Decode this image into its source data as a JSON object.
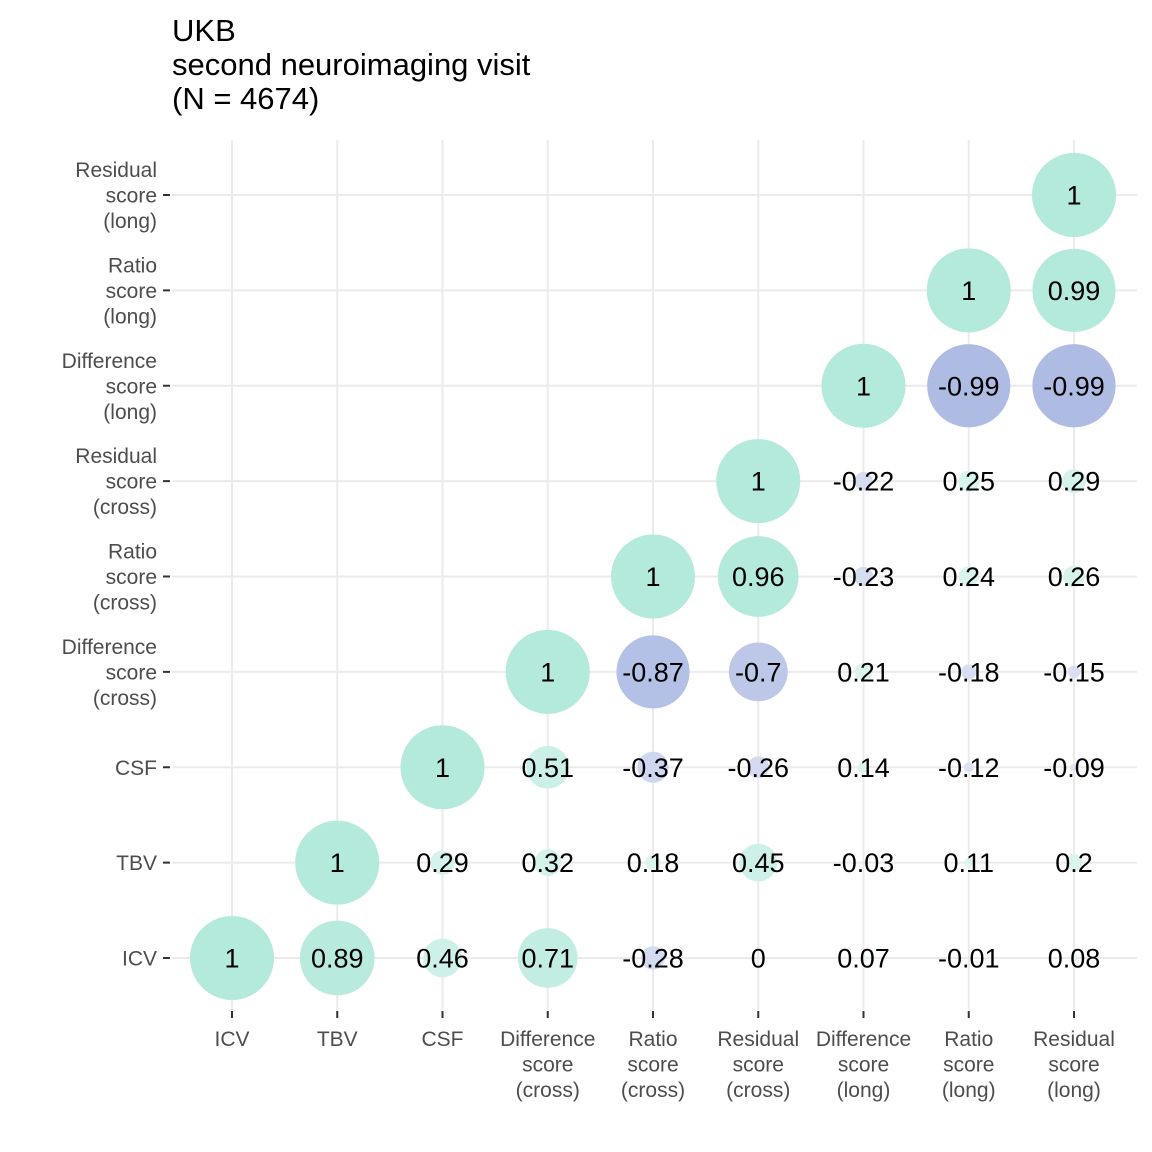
{
  "chart_data": {
    "type": "correlation-matrix",
    "title": [
      "UKB",
      "second neuroimaging visit",
      "(N = 4674)"
    ],
    "variables": [
      [
        "ICV"
      ],
      [
        "TBV"
      ],
      [
        "CSF"
      ],
      [
        "Difference",
        "score",
        "(cross)"
      ],
      [
        "Ratio",
        "score",
        "(cross)"
      ],
      [
        "Residual",
        "score",
        "(cross)"
      ],
      [
        "Difference",
        "score",
        "(long)"
      ],
      [
        "Ratio",
        "score",
        "(long)"
      ],
      [
        "Residual",
        "score",
        "(long)"
      ]
    ],
    "colors": {
      "positive": "#66d4b8",
      "negative": "#5b78c8"
    },
    "grid": true,
    "cells": [
      {
        "x": 0,
        "y": 0,
        "value": 1,
        "label": "1"
      },
      {
        "x": 1,
        "y": 0,
        "value": 0.89,
        "label": "0.89"
      },
      {
        "x": 2,
        "y": 0,
        "value": 0.46,
        "label": "0.46"
      },
      {
        "x": 3,
        "y": 0,
        "value": 0.71,
        "label": "0.71"
      },
      {
        "x": 4,
        "y": 0,
        "value": -0.28,
        "label": "-0.28"
      },
      {
        "x": 5,
        "y": 0,
        "value": 0,
        "label": "0"
      },
      {
        "x": 6,
        "y": 0,
        "value": 0.07,
        "label": "0.07"
      },
      {
        "x": 7,
        "y": 0,
        "value": -0.01,
        "label": "-0.01"
      },
      {
        "x": 8,
        "y": 0,
        "value": 0.08,
        "label": "0.08"
      },
      {
        "x": 1,
        "y": 1,
        "value": 1,
        "label": "1"
      },
      {
        "x": 2,
        "y": 1,
        "value": 0.29,
        "label": "0.29"
      },
      {
        "x": 3,
        "y": 1,
        "value": 0.32,
        "label": "0.32"
      },
      {
        "x": 4,
        "y": 1,
        "value": 0.18,
        "label": "0.18"
      },
      {
        "x": 5,
        "y": 1,
        "value": 0.45,
        "label": "0.45"
      },
      {
        "x": 6,
        "y": 1,
        "value": -0.03,
        "label": "-0.03"
      },
      {
        "x": 7,
        "y": 1,
        "value": 0.11,
        "label": "0.11"
      },
      {
        "x": 8,
        "y": 1,
        "value": 0.2,
        "label": "0.2"
      },
      {
        "x": 2,
        "y": 2,
        "value": 1,
        "label": "1"
      },
      {
        "x": 3,
        "y": 2,
        "value": 0.51,
        "label": "0.51"
      },
      {
        "x": 4,
        "y": 2,
        "value": -0.37,
        "label": "-0.37"
      },
      {
        "x": 5,
        "y": 2,
        "value": -0.26,
        "label": "-0.26"
      },
      {
        "x": 6,
        "y": 2,
        "value": 0.14,
        "label": "0.14"
      },
      {
        "x": 7,
        "y": 2,
        "value": -0.12,
        "label": "-0.12"
      },
      {
        "x": 8,
        "y": 2,
        "value": -0.09,
        "label": "-0.09"
      },
      {
        "x": 3,
        "y": 3,
        "value": 1,
        "label": "1"
      },
      {
        "x": 4,
        "y": 3,
        "value": -0.87,
        "label": "-0.87"
      },
      {
        "x": 5,
        "y": 3,
        "value": -0.7,
        "label": "-0.7"
      },
      {
        "x": 6,
        "y": 3,
        "value": 0.21,
        "label": "0.21"
      },
      {
        "x": 7,
        "y": 3,
        "value": -0.18,
        "label": "-0.18"
      },
      {
        "x": 8,
        "y": 3,
        "value": -0.15,
        "label": "-0.15"
      },
      {
        "x": 4,
        "y": 4,
        "value": 1,
        "label": "1"
      },
      {
        "x": 5,
        "y": 4,
        "value": 0.96,
        "label": "0.96"
      },
      {
        "x": 6,
        "y": 4,
        "value": -0.23,
        "label": "-0.23"
      },
      {
        "x": 7,
        "y": 4,
        "value": 0.24,
        "label": "0.24"
      },
      {
        "x": 8,
        "y": 4,
        "value": 0.26,
        "label": "0.26"
      },
      {
        "x": 5,
        "y": 5,
        "value": 1,
        "label": "1"
      },
      {
        "x": 6,
        "y": 5,
        "value": -0.22,
        "label": "-0.22"
      },
      {
        "x": 7,
        "y": 5,
        "value": 0.25,
        "label": "0.25"
      },
      {
        "x": 8,
        "y": 5,
        "value": 0.29,
        "label": "0.29"
      },
      {
        "x": 6,
        "y": 6,
        "value": 1,
        "label": "1"
      },
      {
        "x": 7,
        "y": 6,
        "value": -0.99,
        "label": "-0.99"
      },
      {
        "x": 8,
        "y": 6,
        "value": -0.99,
        "label": "-0.99"
      },
      {
        "x": 7,
        "y": 7,
        "value": 1,
        "label": "1"
      },
      {
        "x": 8,
        "y": 7,
        "value": 0.99,
        "label": "0.99"
      },
      {
        "x": 8,
        "y": 8,
        "value": 1,
        "label": "1"
      }
    ]
  }
}
